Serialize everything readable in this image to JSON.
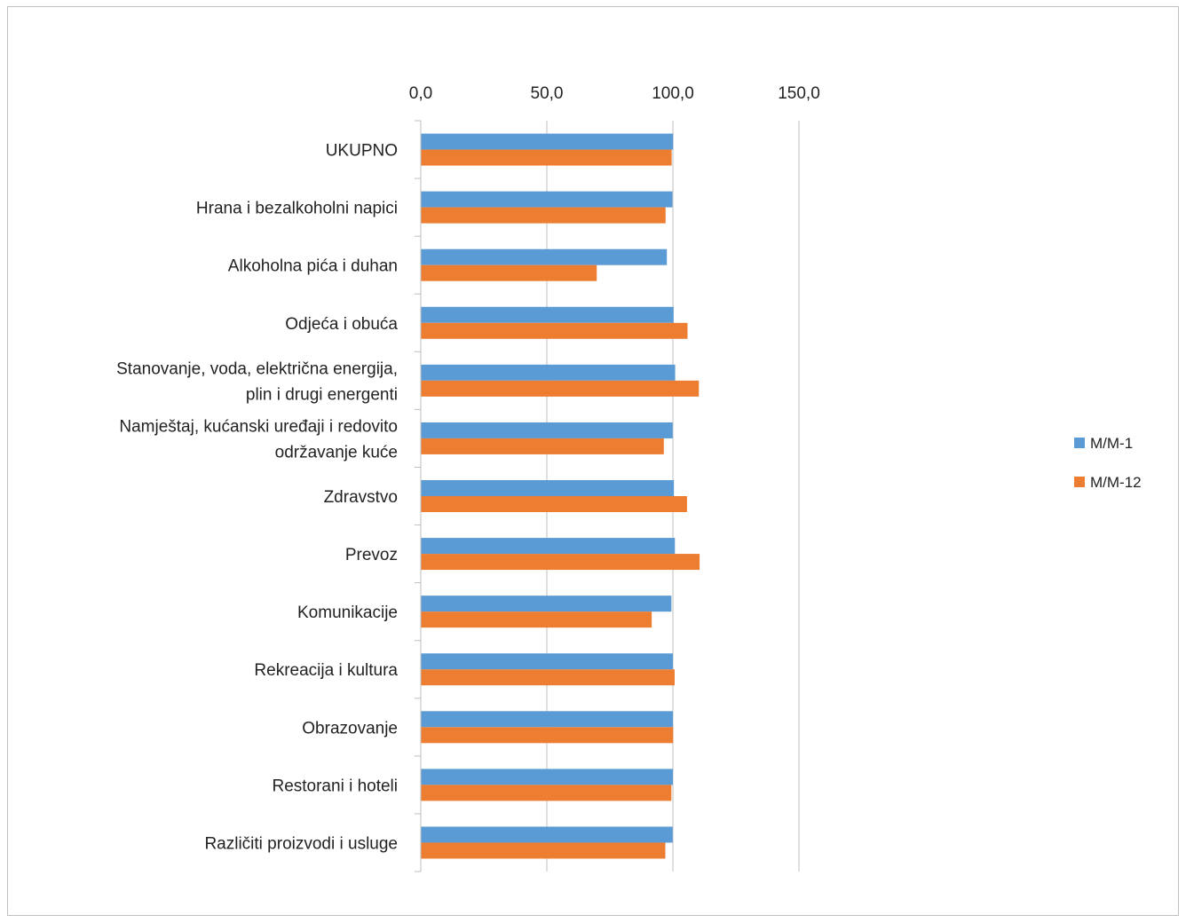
{
  "chart_data": {
    "type": "bar",
    "orientation": "horizontal",
    "categories": [
      [
        "UKUPNO"
      ],
      [
        "Hrana i bezalkoholni napici"
      ],
      [
        "Alkoholna pića i duhan"
      ],
      [
        "Odjeća i obuća"
      ],
      [
        "Stanovanje, voda, električna energija,",
        "plin i drugi energenti"
      ],
      [
        "Namještaj, kućanski uređaji i redovito",
        "održavanje kuće"
      ],
      [
        "Zdravstvo"
      ],
      [
        "Prevoz"
      ],
      [
        "Komunikacije"
      ],
      [
        "Rekreacija i kultura"
      ],
      [
        "Obrazovanje"
      ],
      [
        "Restorani i hoteli"
      ],
      [
        "Različiti proizvodi i usluge"
      ]
    ],
    "series": [
      {
        "name": "M/M-1",
        "color": "#5B9BD5",
        "values": [
          100.1,
          99.8,
          97.6,
          100.3,
          100.9,
          99.9,
          100.4,
          100.8,
          99.4,
          100.0,
          100.0,
          100.0,
          99.9
        ]
      },
      {
        "name": "M/M-12",
        "color": "#ED7D31",
        "values": [
          99.5,
          97.1,
          69.8,
          105.8,
          110.3,
          96.4,
          105.6,
          110.6,
          91.6,
          100.7,
          100.1,
          99.4,
          97.0
        ]
      }
    ],
    "xlim": [
      0,
      150
    ],
    "xticks": [
      "0,0",
      "50,0",
      "100,0",
      "150,0"
    ],
    "axis_position": "top",
    "grid": true,
    "legend_position": "right",
    "title": "",
    "xlabel": "",
    "ylabel": ""
  }
}
